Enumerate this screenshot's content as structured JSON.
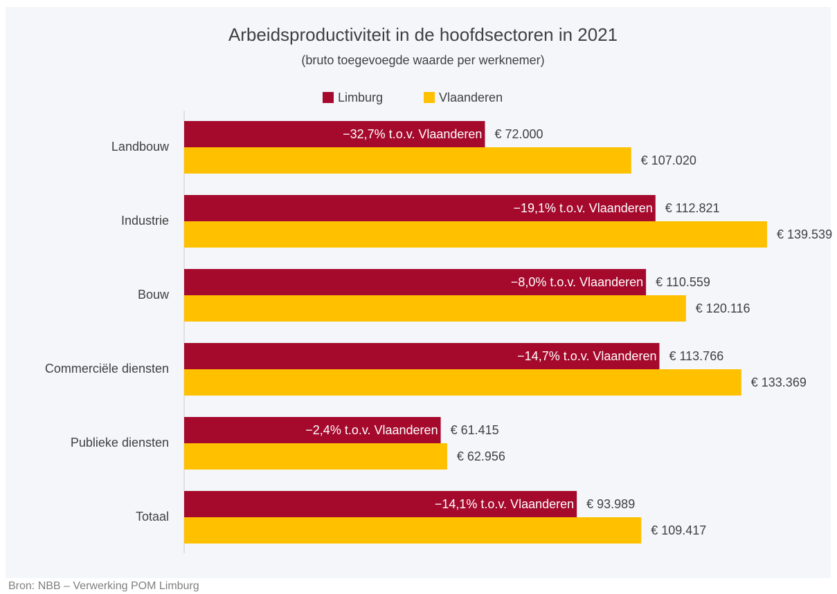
{
  "chart_data": {
    "type": "barh",
    "title": "Arbeidsproductiviteit in de hoofdsectoren in 2021",
    "subtitle": "(bruto toegevoegde waarde per werknemer)",
    "source": "Bron: NBB – Verwerking POM Limburg",
    "categories": [
      "Landbouw",
      "Industrie",
      "Bouw",
      "Commerciële diensten",
      "Publieke diensten",
      "Totaal"
    ],
    "series": [
      {
        "name": "Limburg",
        "color": "#a50a2d",
        "values": [
          72000,
          112821,
          110559,
          113766,
          61415,
          93989
        ],
        "value_labels": [
          "€ 72.000",
          "€ 112.821",
          "€ 110.559",
          "€ 113.766",
          "€ 61.415",
          "€ 93.989"
        ],
        "annotations": [
          "−32,7% t.o.v. Vlaanderen",
          "−19,1% t.o.v. Vlaanderen",
          "−8,0% t.o.v. Vlaanderen",
          "−14,7% t.o.v. Vlaanderen",
          "−2,4% t.o.v. Vlaanderen",
          "−14,1% t.o.v. Vlaanderen"
        ]
      },
      {
        "name": "Vlaanderen",
        "color": "#ffc000",
        "values": [
          107020,
          139539,
          120116,
          133369,
          62956,
          109417
        ],
        "value_labels": [
          "€ 107.020",
          "€ 139.539",
          "€ 120.116",
          "€ 133.369",
          "€ 62.956",
          "€ 109.417"
        ]
      }
    ],
    "legend": "top"
  }
}
